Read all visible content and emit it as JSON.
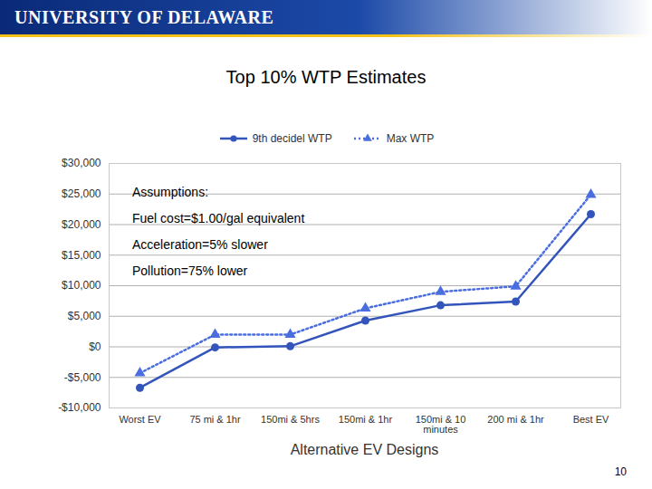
{
  "header": "UNIVERSITY OF DELAWARE",
  "page_number": 10,
  "chart_data": {
    "type": "line",
    "title": "Top 10% WTP Estimates",
    "x_label": "Alternative EV Designs",
    "annotations": [
      "Assumptions:",
      "Fuel cost=$1.00/gal equivalent",
      "Acceleration=5% slower",
      "Pollution=75% lower"
    ],
    "categories": [
      "Worst EV",
      "75 mi & 1hr",
      "150mi & 5hrs",
      "150mi & 1hr",
      "150mi & 10 minutes",
      "200 mi & 1hr",
      "Best EV"
    ],
    "series": [
      {
        "name": "9th decidel WTP",
        "color": "#3355bb",
        "marker": "circle",
        "line_style": "solid",
        "values": [
          -6700,
          -100,
          100,
          4300,
          6800,
          7400,
          21700
        ]
      },
      {
        "name": "Max WTP",
        "color": "#4a6ee0",
        "marker": "triangle",
        "line_style": "dotted",
        "values": [
          -4300,
          2000,
          2000,
          6300,
          9000,
          9900,
          24900
        ]
      }
    ],
    "ylim": [
      -10000,
      30000
    ],
    "yticks": [
      {
        "value": -10000,
        "label": "-$10,000"
      },
      {
        "value": -5000,
        "label": "-$5,000"
      },
      {
        "value": 0,
        "label": "$0"
      },
      {
        "value": 5000,
        "label": "$5,000"
      },
      {
        "value": 10000,
        "label": "$10,000"
      },
      {
        "value": 15000,
        "label": "$15,000"
      },
      {
        "value": 20000,
        "label": "$20,000"
      },
      {
        "value": 25000,
        "label": "$25,000"
      },
      {
        "value": 30000,
        "label": "$30,000"
      }
    ],
    "grid": true,
    "legend": "top"
  }
}
